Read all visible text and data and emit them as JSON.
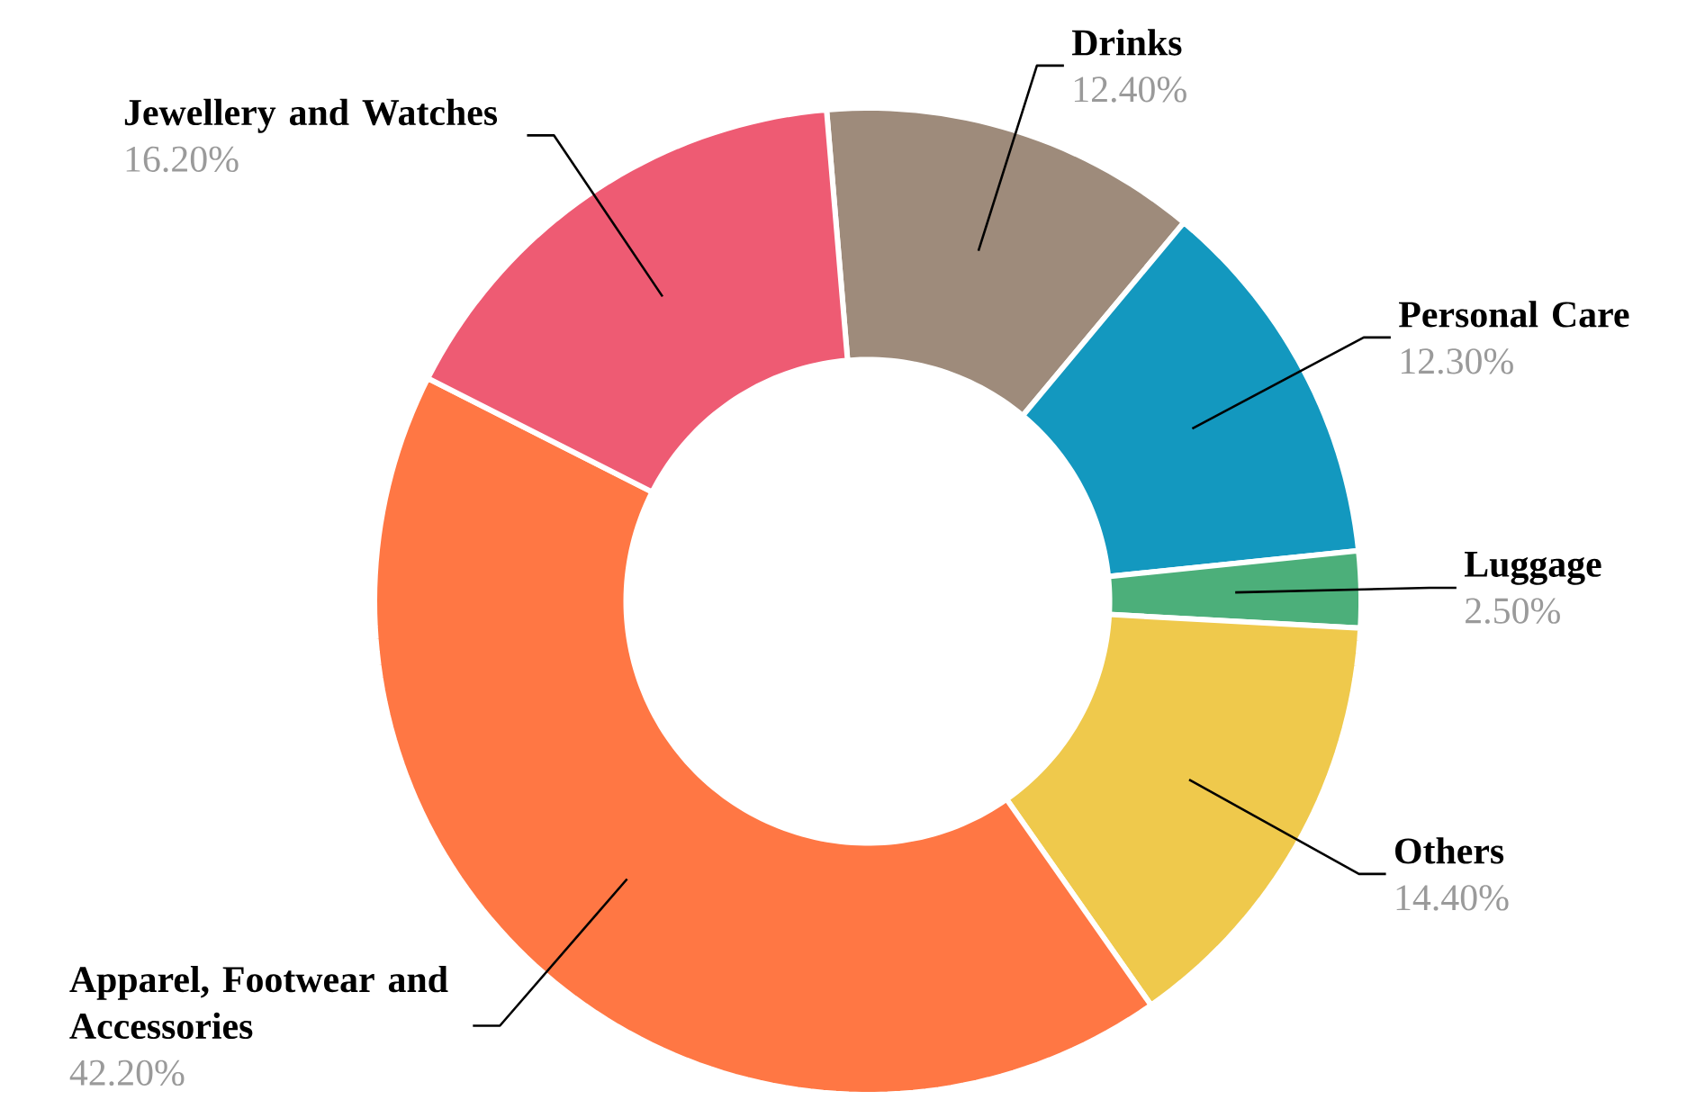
{
  "chart_data": {
    "type": "donut",
    "categories": [
      "Drinks",
      "Personal Care",
      "Luggage",
      "Others",
      "Apparel, Footwear and Accessories",
      "Jewellery and Watches"
    ],
    "values": [
      12.4,
      12.3,
      2.5,
      14.4,
      42.2,
      16.2
    ],
    "value_labels": [
      "12.40%",
      "12.30%",
      "2.50%",
      "14.40%",
      "42.20%",
      "16.20%"
    ],
    "colors": [
      "#9e8b7b",
      "#1398bf",
      "#4caf7a",
      "#efc94c",
      "#ff7744",
      "#ee5b73"
    ]
  }
}
